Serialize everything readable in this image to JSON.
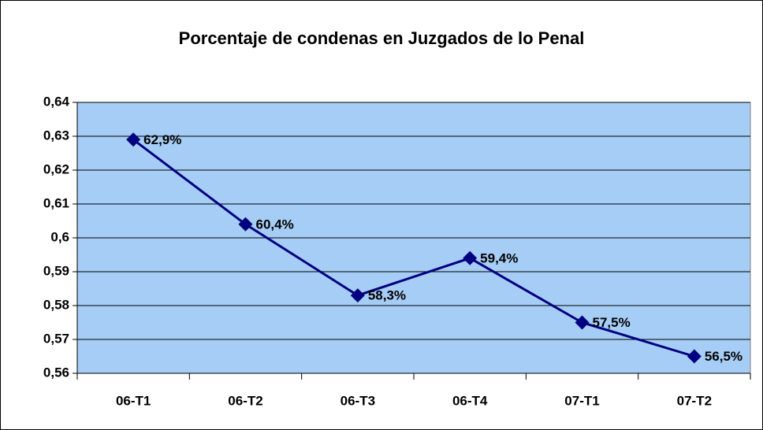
{
  "chart_data": {
    "type": "line",
    "title": "Porcentaje de condenas en Juzgados de lo Penal",
    "categories": [
      "06-T1",
      "06-T2",
      "06-T3",
      "06-T4",
      "07-T1",
      "07-T2"
    ],
    "series": [
      {
        "name": "Porcentaje de condenas",
        "color": "#000080",
        "values": [
          0.629,
          0.604,
          0.583,
          0.594,
          0.575,
          0.565
        ],
        "value_labels": [
          "62,9%",
          "60,4%",
          "58,3%",
          "59,4%",
          "57,5%",
          "56,5%"
        ]
      }
    ],
    "ylim": [
      0.56,
      0.64
    ],
    "yticks": [
      {
        "value": 0.56,
        "label": "0,56"
      },
      {
        "value": 0.57,
        "label": "0,57"
      },
      {
        "value": 0.58,
        "label": "0,58"
      },
      {
        "value": 0.59,
        "label": "0,59"
      },
      {
        "value": 0.6,
        "label": "0,6"
      },
      {
        "value": 0.61,
        "label": "0,61"
      },
      {
        "value": 0.62,
        "label": "0,62"
      },
      {
        "value": 0.63,
        "label": "0,63"
      },
      {
        "value": 0.64,
        "label": "0,64"
      }
    ],
    "grid": true,
    "plot_background": "#a6cdf5"
  }
}
